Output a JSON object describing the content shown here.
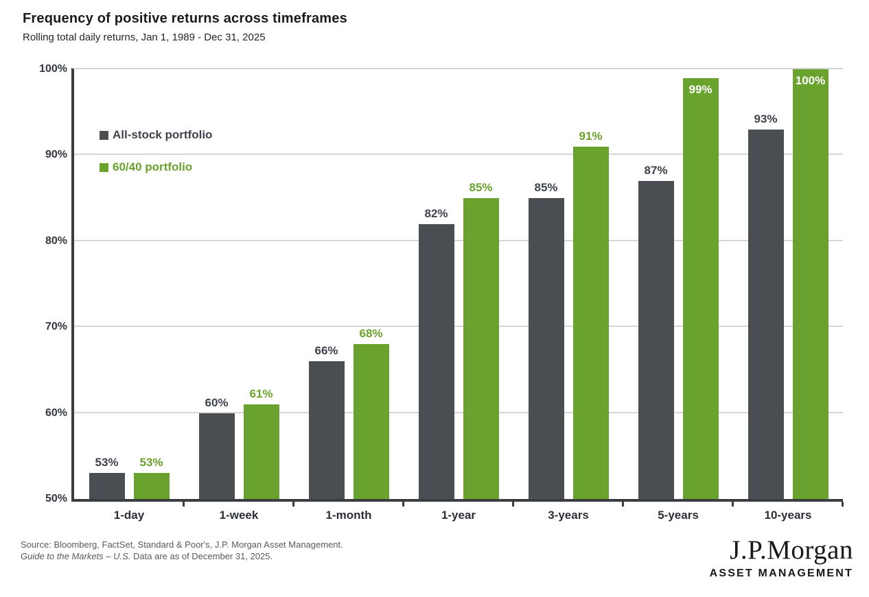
{
  "header": {
    "title": "Frequency of positive returns across timeframes",
    "subtitle": "Rolling total daily returns, Jan 1, 1989 - Dec 31, 2025"
  },
  "colors": {
    "all_stock_bar": "#4a4e53",
    "all_stock_label": "#3d424d",
    "green_bar": "#69a22c",
    "green_label": "#69a22c",
    "axis": "#3a3d42",
    "gridline": "#d6d6d6"
  },
  "chart_data": {
    "type": "bar",
    "title": "Frequency of positive returns across timeframes",
    "subtitle": "Rolling total daily returns, Jan 1, 1989 - Dec 31, 2025",
    "categories": [
      "1-day",
      "1-week",
      "1-month",
      "1-year",
      "3-years",
      "5-years",
      "10-years"
    ],
    "series": [
      {
        "name": "All-stock portfolio",
        "color": "#4a4e53",
        "label_color": "#3d424d",
        "values": [
          53,
          60,
          66,
          82,
          85,
          87,
          93
        ]
      },
      {
        "name": "60/40 portfolio",
        "color": "#69a22c",
        "label_color": "#69a22c",
        "values": [
          53,
          61,
          68,
          85,
          91,
          99,
          100
        ]
      }
    ],
    "value_suffix": "%",
    "ylim": [
      50,
      100
    ],
    "yticks": [
      50,
      60,
      70,
      80,
      90,
      100
    ],
    "ytick_suffix": "%",
    "grid": "horizontal",
    "legend_position": "inside-top-left",
    "inside_label_min": 99
  },
  "legend": {
    "items": [
      {
        "label": "All-stock portfolio",
        "color": "#4a4e53",
        "text_color": "#3d424d"
      },
      {
        "label": "60/40 portfolio",
        "color": "#69a22c",
        "text_color": "#69a22c"
      }
    ]
  },
  "footer": {
    "source_line1": "Source: Bloomberg, FactSet, Standard & Poor's, J.P. Morgan Asset Management.",
    "source_line2_italic": "Guide to the Markets – U.S.",
    "source_line2_rest": " Data are as of December 31, 2025.",
    "logo_name": "J.P.Morgan",
    "logo_sub": "ASSET MANAGEMENT"
  }
}
